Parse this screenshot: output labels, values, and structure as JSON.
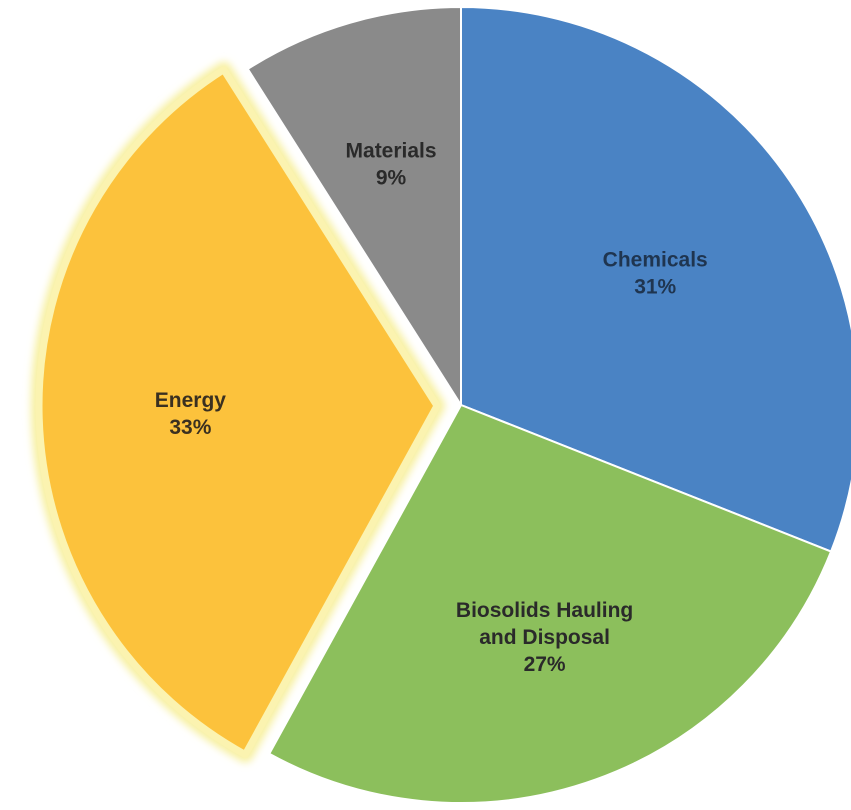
{
  "chart_data": {
    "type": "pie",
    "title": "",
    "legend": "none",
    "start_angle_deg": 0,
    "direction": "clockwise",
    "slices": [
      {
        "name": "Chemicals",
        "value": 31,
        "label_lines": [
          "Chemicals"
        ],
        "pct_label": "31%",
        "color": "#4a83c4",
        "label_color": "#1f3550",
        "exploded": false
      },
      {
        "name": "Biosolids Hauling and Disposal",
        "value": 27,
        "label_lines": [
          "Biosolids Hauling",
          "and Disposal"
        ],
        "pct_label": "27%",
        "color": "#8cbf5c",
        "label_color": "#2a2a2a",
        "exploded": false
      },
      {
        "name": "Energy",
        "value": 33,
        "label_lines": [
          "Energy"
        ],
        "pct_label": "33%",
        "color": "#fcc23c",
        "label_color": "#3a3020",
        "exploded": true
      },
      {
        "name": "Materials",
        "value": 9,
        "label_lines": [
          "Materials"
        ],
        "pct_label": "9%",
        "color": "#8a8a8a",
        "label_color": "#2a2a2a",
        "exploded": false
      }
    ]
  }
}
